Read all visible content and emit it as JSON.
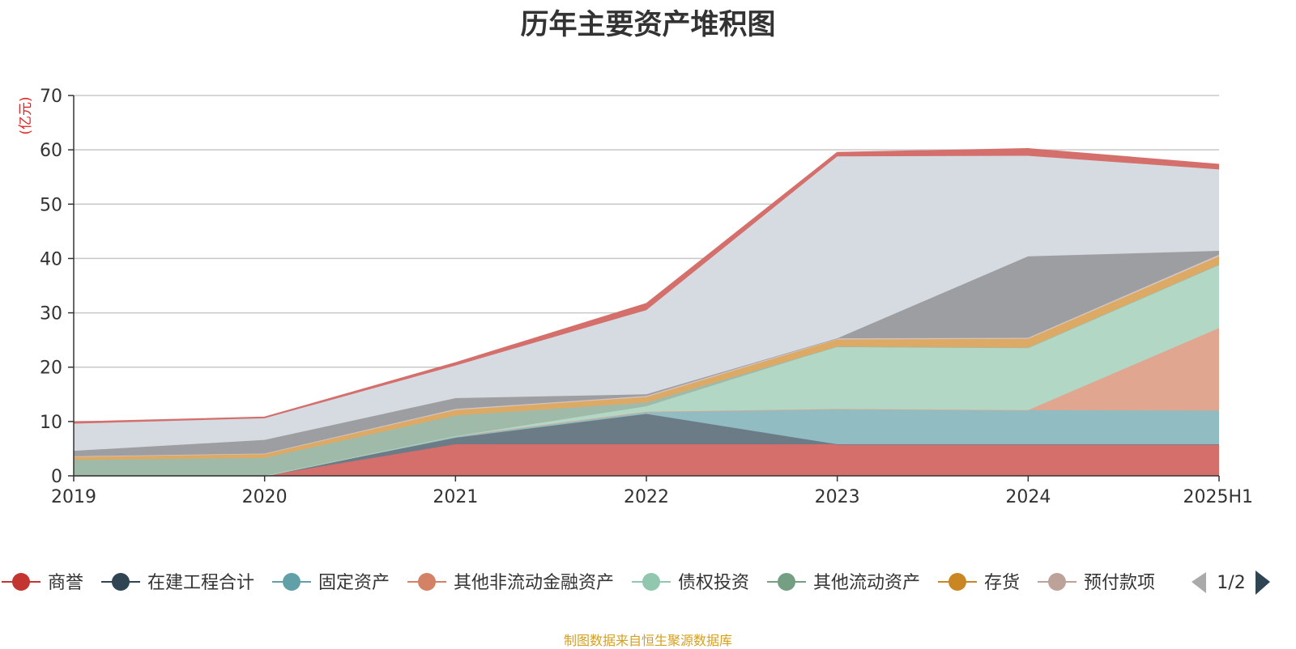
{
  "chart_data": {
    "type": "area",
    "title": "历年主要资产堆积图",
    "unit_label": "(亿元)",
    "source": "制图数据来自恒生聚源数据库",
    "categories": [
      "2019",
      "2020",
      "2021",
      "2022",
      "2023",
      "2024",
      "2025H1"
    ],
    "ylim": [
      0,
      70
    ],
    "yticks": [
      0,
      10,
      20,
      30,
      40,
      50,
      60,
      70
    ],
    "grid": true,
    "legend_position": "bottom",
    "legend_page": "1/2",
    "stacked": true,
    "series": [
      {
        "name": "商誉",
        "legend_color": "#c23531",
        "fill": "#d46f6c",
        "in_legend": true,
        "values": [
          0,
          0,
          5.8,
          5.8,
          5.8,
          5.8,
          5.8
        ]
      },
      {
        "name": "在建工程合计",
        "legend_color": "#2f4554",
        "fill": "#6b7c87",
        "in_legend": true,
        "values": [
          0,
          0,
          1.2,
          5.6,
          0,
          0,
          0
        ]
      },
      {
        "name": "固定资产",
        "legend_color": "#61a0a8",
        "fill": "#91bcc1",
        "in_legend": true,
        "values": [
          0,
          0,
          0.3,
          0.4,
          6.5,
          6.3,
          6.2
        ]
      },
      {
        "name": "其他非流动金融资产",
        "legend_color": "#d48265",
        "fill": "#e0a690",
        "in_legend": true,
        "values": [
          0,
          0,
          0,
          0,
          0,
          0,
          15.2
        ]
      },
      {
        "name": "债权投资",
        "legend_color": "#91c7ae",
        "fill": "#b2d8c5",
        "in_legend": true,
        "values": [
          0,
          0,
          0,
          1.0,
          11.5,
          11.5,
          11.7
        ]
      },
      {
        "name": "其他流动资产",
        "legend_color": "#749f83",
        "fill": "#9fbaa9",
        "in_legend": true,
        "values": [
          2.9,
          3.3,
          3.8,
          0.7,
          0,
          0,
          0
        ]
      },
      {
        "name": "存货",
        "legend_color": "#ca8622",
        "fill": "#ddaa66",
        "in_legend": true,
        "values": [
          0.6,
          0.7,
          1.0,
          1.0,
          1.3,
          1.6,
          1.5
        ]
      },
      {
        "name": "预付款项",
        "legend_color": "#bda29a",
        "fill": "#d6c4bf",
        "in_legend": true,
        "values": [
          0.1,
          0.1,
          0.2,
          0.2,
          0.2,
          0.2,
          0.3
        ]
      },
      {
        "name": "",
        "legend_color": "#6e7074",
        "fill": "#9d9ea1",
        "in_legend": false,
        "values": [
          1.0,
          2.5,
          2.0,
          0.3,
          0,
          15.0,
          0.7
        ]
      },
      {
        "name": "",
        "legend_color": "#c5ccd6",
        "fill": "#d6dae1",
        "in_legend": false,
        "values": [
          5.0,
          4.0,
          6.0,
          15.5,
          33.5,
          18.5,
          15.0
        ]
      },
      {
        "name": "",
        "legend_color": "#c23531",
        "fill": "#d46f6c",
        "in_legend": false,
        "values": [
          0.3,
          0.2,
          0.5,
          1.2,
          0.7,
          1.3,
          0.9
        ]
      }
    ]
  }
}
